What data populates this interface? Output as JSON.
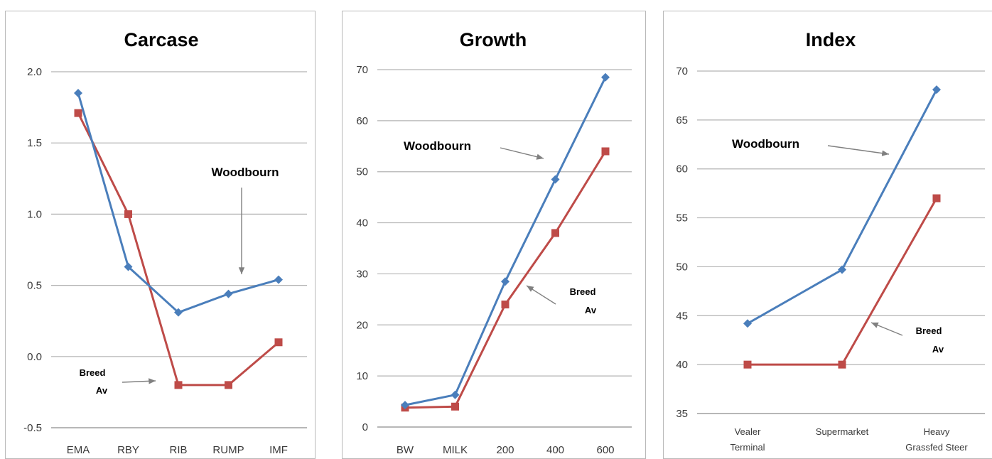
{
  "chart_data": [
    {
      "type": "line",
      "title": "Carcase",
      "categories": [
        "EMA",
        "RBY",
        "RIB",
        "RUMP",
        "IMF"
      ],
      "ylim": [
        -0.5,
        2.0
      ],
      "yticks": [
        "-0.5",
        "0.0",
        "0.5",
        "1.0",
        "1.5",
        "2.0"
      ],
      "grid": true,
      "series": [
        {
          "name": "Woodbourn",
          "color": "#4a7ebb",
          "marker": "diamond",
          "values": [
            1.85,
            0.63,
            0.31,
            0.44,
            0.54
          ]
        },
        {
          "name": "Breed Av",
          "color": "#be4b48",
          "marker": "square",
          "values": [
            1.71,
            1.0,
            -0.2,
            -0.2,
            0.1
          ]
        }
      ],
      "annotations": [
        {
          "text": "Woodbourn"
        },
        {
          "text": "Breed"
        },
        {
          "text": "Av"
        }
      ]
    },
    {
      "type": "line",
      "title": "Growth",
      "categories": [
        "BW",
        "MILK",
        "200",
        "400",
        "600"
      ],
      "ylim": [
        0,
        70
      ],
      "yticks": [
        "0",
        "10",
        "20",
        "30",
        "40",
        "50",
        "60",
        "70"
      ],
      "grid": true,
      "series": [
        {
          "name": "Woodbourn",
          "color": "#4a7ebb",
          "marker": "diamond",
          "values": [
            4.3,
            6.3,
            28.5,
            48.5,
            68.5
          ]
        },
        {
          "name": "Breed Av",
          "color": "#be4b48",
          "marker": "square",
          "values": [
            3.8,
            4.0,
            24.0,
            38.0,
            54.0
          ]
        }
      ],
      "annotations": [
        {
          "text": "Woodbourn"
        },
        {
          "text": "Breed"
        },
        {
          "text": "Av"
        }
      ]
    },
    {
      "type": "line",
      "title": "Index",
      "categories": [
        [
          "Vealer",
          "Terminal"
        ],
        [
          "Supermarket"
        ],
        [
          "Heavy",
          "Grassfed Steer"
        ]
      ],
      "ylim": [
        35,
        70
      ],
      "yticks": [
        "35",
        "40",
        "45",
        "50",
        "55",
        "60",
        "65",
        "70"
      ],
      "grid": true,
      "series": [
        {
          "name": "Woodbourn",
          "color": "#4a7ebb",
          "marker": "diamond",
          "values": [
            44.2,
            49.7,
            68.1
          ]
        },
        {
          "name": "Breed Av",
          "color": "#be4b48",
          "marker": "square",
          "values": [
            40.0,
            40.0,
            57.0
          ]
        }
      ],
      "annotations": [
        {
          "text": "Woodbourn"
        },
        {
          "text": "Breed"
        },
        {
          "text": "Av"
        }
      ]
    }
  ]
}
